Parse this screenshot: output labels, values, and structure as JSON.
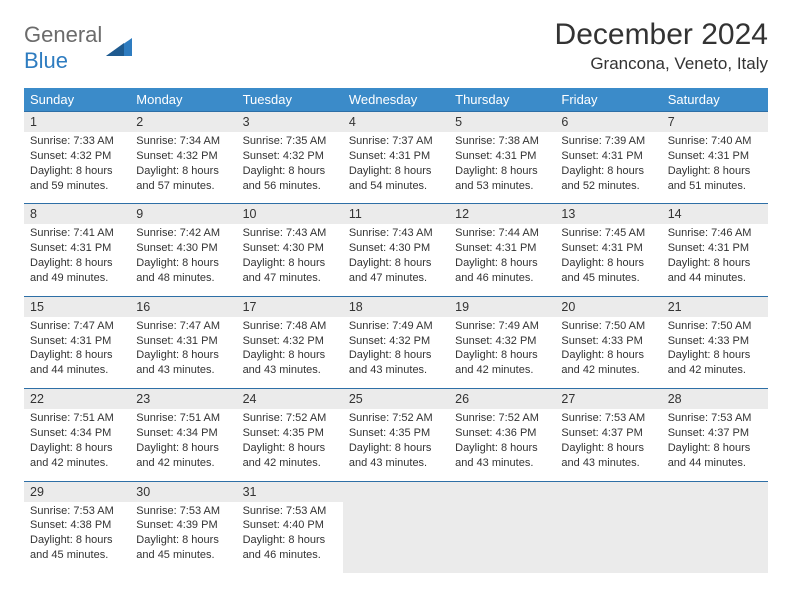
{
  "logo": {
    "word1": "General",
    "word2": "Blue"
  },
  "title": "December 2024",
  "location": "Grancona, Veneto, Italy",
  "dow": [
    "Sunday",
    "Monday",
    "Tuesday",
    "Wednesday",
    "Thursday",
    "Friday",
    "Saturday"
  ],
  "colors": {
    "header_bg": "#3b8bc9",
    "header_text": "#ffffff",
    "daynum_bg": "#ebebeb",
    "daynum_border": "#2e6fa6",
    "text": "#333333",
    "logo_gray": "#6b6b6b",
    "logo_blue": "#2e7cc0",
    "background": "#ffffff"
  },
  "weeks": [
    [
      {
        "n": "1",
        "sr": "Sunrise: 7:33 AM",
        "ss": "Sunset: 4:32 PM",
        "dl": "Daylight: 8 hours and 59 minutes."
      },
      {
        "n": "2",
        "sr": "Sunrise: 7:34 AM",
        "ss": "Sunset: 4:32 PM",
        "dl": "Daylight: 8 hours and 57 minutes."
      },
      {
        "n": "3",
        "sr": "Sunrise: 7:35 AM",
        "ss": "Sunset: 4:32 PM",
        "dl": "Daylight: 8 hours and 56 minutes."
      },
      {
        "n": "4",
        "sr": "Sunrise: 7:37 AM",
        "ss": "Sunset: 4:31 PM",
        "dl": "Daylight: 8 hours and 54 minutes."
      },
      {
        "n": "5",
        "sr": "Sunrise: 7:38 AM",
        "ss": "Sunset: 4:31 PM",
        "dl": "Daylight: 8 hours and 53 minutes."
      },
      {
        "n": "6",
        "sr": "Sunrise: 7:39 AM",
        "ss": "Sunset: 4:31 PM",
        "dl": "Daylight: 8 hours and 52 minutes."
      },
      {
        "n": "7",
        "sr": "Sunrise: 7:40 AM",
        "ss": "Sunset: 4:31 PM",
        "dl": "Daylight: 8 hours and 51 minutes."
      }
    ],
    [
      {
        "n": "8",
        "sr": "Sunrise: 7:41 AM",
        "ss": "Sunset: 4:31 PM",
        "dl": "Daylight: 8 hours and 49 minutes."
      },
      {
        "n": "9",
        "sr": "Sunrise: 7:42 AM",
        "ss": "Sunset: 4:30 PM",
        "dl": "Daylight: 8 hours and 48 minutes."
      },
      {
        "n": "10",
        "sr": "Sunrise: 7:43 AM",
        "ss": "Sunset: 4:30 PM",
        "dl": "Daylight: 8 hours and 47 minutes."
      },
      {
        "n": "11",
        "sr": "Sunrise: 7:43 AM",
        "ss": "Sunset: 4:30 PM",
        "dl": "Daylight: 8 hours and 47 minutes."
      },
      {
        "n": "12",
        "sr": "Sunrise: 7:44 AM",
        "ss": "Sunset: 4:31 PM",
        "dl": "Daylight: 8 hours and 46 minutes."
      },
      {
        "n": "13",
        "sr": "Sunrise: 7:45 AM",
        "ss": "Sunset: 4:31 PM",
        "dl": "Daylight: 8 hours and 45 minutes."
      },
      {
        "n": "14",
        "sr": "Sunrise: 7:46 AM",
        "ss": "Sunset: 4:31 PM",
        "dl": "Daylight: 8 hours and 44 minutes."
      }
    ],
    [
      {
        "n": "15",
        "sr": "Sunrise: 7:47 AM",
        "ss": "Sunset: 4:31 PM",
        "dl": "Daylight: 8 hours and 44 minutes."
      },
      {
        "n": "16",
        "sr": "Sunrise: 7:47 AM",
        "ss": "Sunset: 4:31 PM",
        "dl": "Daylight: 8 hours and 43 minutes."
      },
      {
        "n": "17",
        "sr": "Sunrise: 7:48 AM",
        "ss": "Sunset: 4:32 PM",
        "dl": "Daylight: 8 hours and 43 minutes."
      },
      {
        "n": "18",
        "sr": "Sunrise: 7:49 AM",
        "ss": "Sunset: 4:32 PM",
        "dl": "Daylight: 8 hours and 43 minutes."
      },
      {
        "n": "19",
        "sr": "Sunrise: 7:49 AM",
        "ss": "Sunset: 4:32 PM",
        "dl": "Daylight: 8 hours and 42 minutes."
      },
      {
        "n": "20",
        "sr": "Sunrise: 7:50 AM",
        "ss": "Sunset: 4:33 PM",
        "dl": "Daylight: 8 hours and 42 minutes."
      },
      {
        "n": "21",
        "sr": "Sunrise: 7:50 AM",
        "ss": "Sunset: 4:33 PM",
        "dl": "Daylight: 8 hours and 42 minutes."
      }
    ],
    [
      {
        "n": "22",
        "sr": "Sunrise: 7:51 AM",
        "ss": "Sunset: 4:34 PM",
        "dl": "Daylight: 8 hours and 42 minutes."
      },
      {
        "n": "23",
        "sr": "Sunrise: 7:51 AM",
        "ss": "Sunset: 4:34 PM",
        "dl": "Daylight: 8 hours and 42 minutes."
      },
      {
        "n": "24",
        "sr": "Sunrise: 7:52 AM",
        "ss": "Sunset: 4:35 PM",
        "dl": "Daylight: 8 hours and 42 minutes."
      },
      {
        "n": "25",
        "sr": "Sunrise: 7:52 AM",
        "ss": "Sunset: 4:35 PM",
        "dl": "Daylight: 8 hours and 43 minutes."
      },
      {
        "n": "26",
        "sr": "Sunrise: 7:52 AM",
        "ss": "Sunset: 4:36 PM",
        "dl": "Daylight: 8 hours and 43 minutes."
      },
      {
        "n": "27",
        "sr": "Sunrise: 7:53 AM",
        "ss": "Sunset: 4:37 PM",
        "dl": "Daylight: 8 hours and 43 minutes."
      },
      {
        "n": "28",
        "sr": "Sunrise: 7:53 AM",
        "ss": "Sunset: 4:37 PM",
        "dl": "Daylight: 8 hours and 44 minutes."
      }
    ],
    [
      {
        "n": "29",
        "sr": "Sunrise: 7:53 AM",
        "ss": "Sunset: 4:38 PM",
        "dl": "Daylight: 8 hours and 45 minutes."
      },
      {
        "n": "30",
        "sr": "Sunrise: 7:53 AM",
        "ss": "Sunset: 4:39 PM",
        "dl": "Daylight: 8 hours and 45 minutes."
      },
      {
        "n": "31",
        "sr": "Sunrise: 7:53 AM",
        "ss": "Sunset: 4:40 PM",
        "dl": "Daylight: 8 hours and 46 minutes."
      },
      null,
      null,
      null,
      null
    ]
  ]
}
